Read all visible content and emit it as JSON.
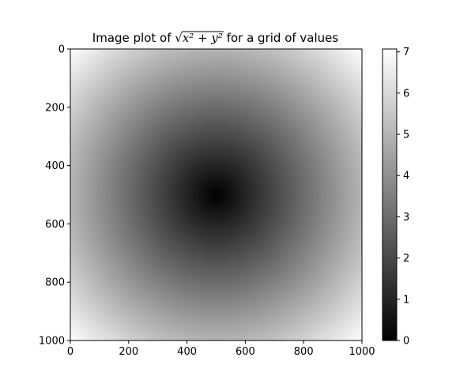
{
  "chart_data": {
    "type": "heatmap",
    "title": {
      "prefix": "Image plot of ",
      "math_radicand": "x² + y²",
      "suffix": " for a grid of values"
    },
    "colormap": "gray",
    "colormap_colors": [
      "#000000",
      "#ffffff"
    ],
    "x_domain": [
      -5,
      5
    ],
    "y_domain": [
      -5,
      5
    ],
    "grid_points": 1000,
    "function": "sqrt(x^2 + y^2)",
    "value_range": [
      0,
      7.07
    ],
    "xlim": [
      0,
      1000
    ],
    "ylim": [
      1000,
      0
    ],
    "xticks": [
      0,
      200,
      400,
      600,
      800,
      1000
    ],
    "yticks": [
      0,
      200,
      400,
      600,
      800,
      1000
    ],
    "colorbar": {
      "range": [
        0,
        7.07
      ],
      "ticks": [
        0,
        1,
        2,
        3,
        4,
        5,
        6,
        7
      ]
    },
    "xlabel": "",
    "ylabel": "",
    "grid": false
  }
}
